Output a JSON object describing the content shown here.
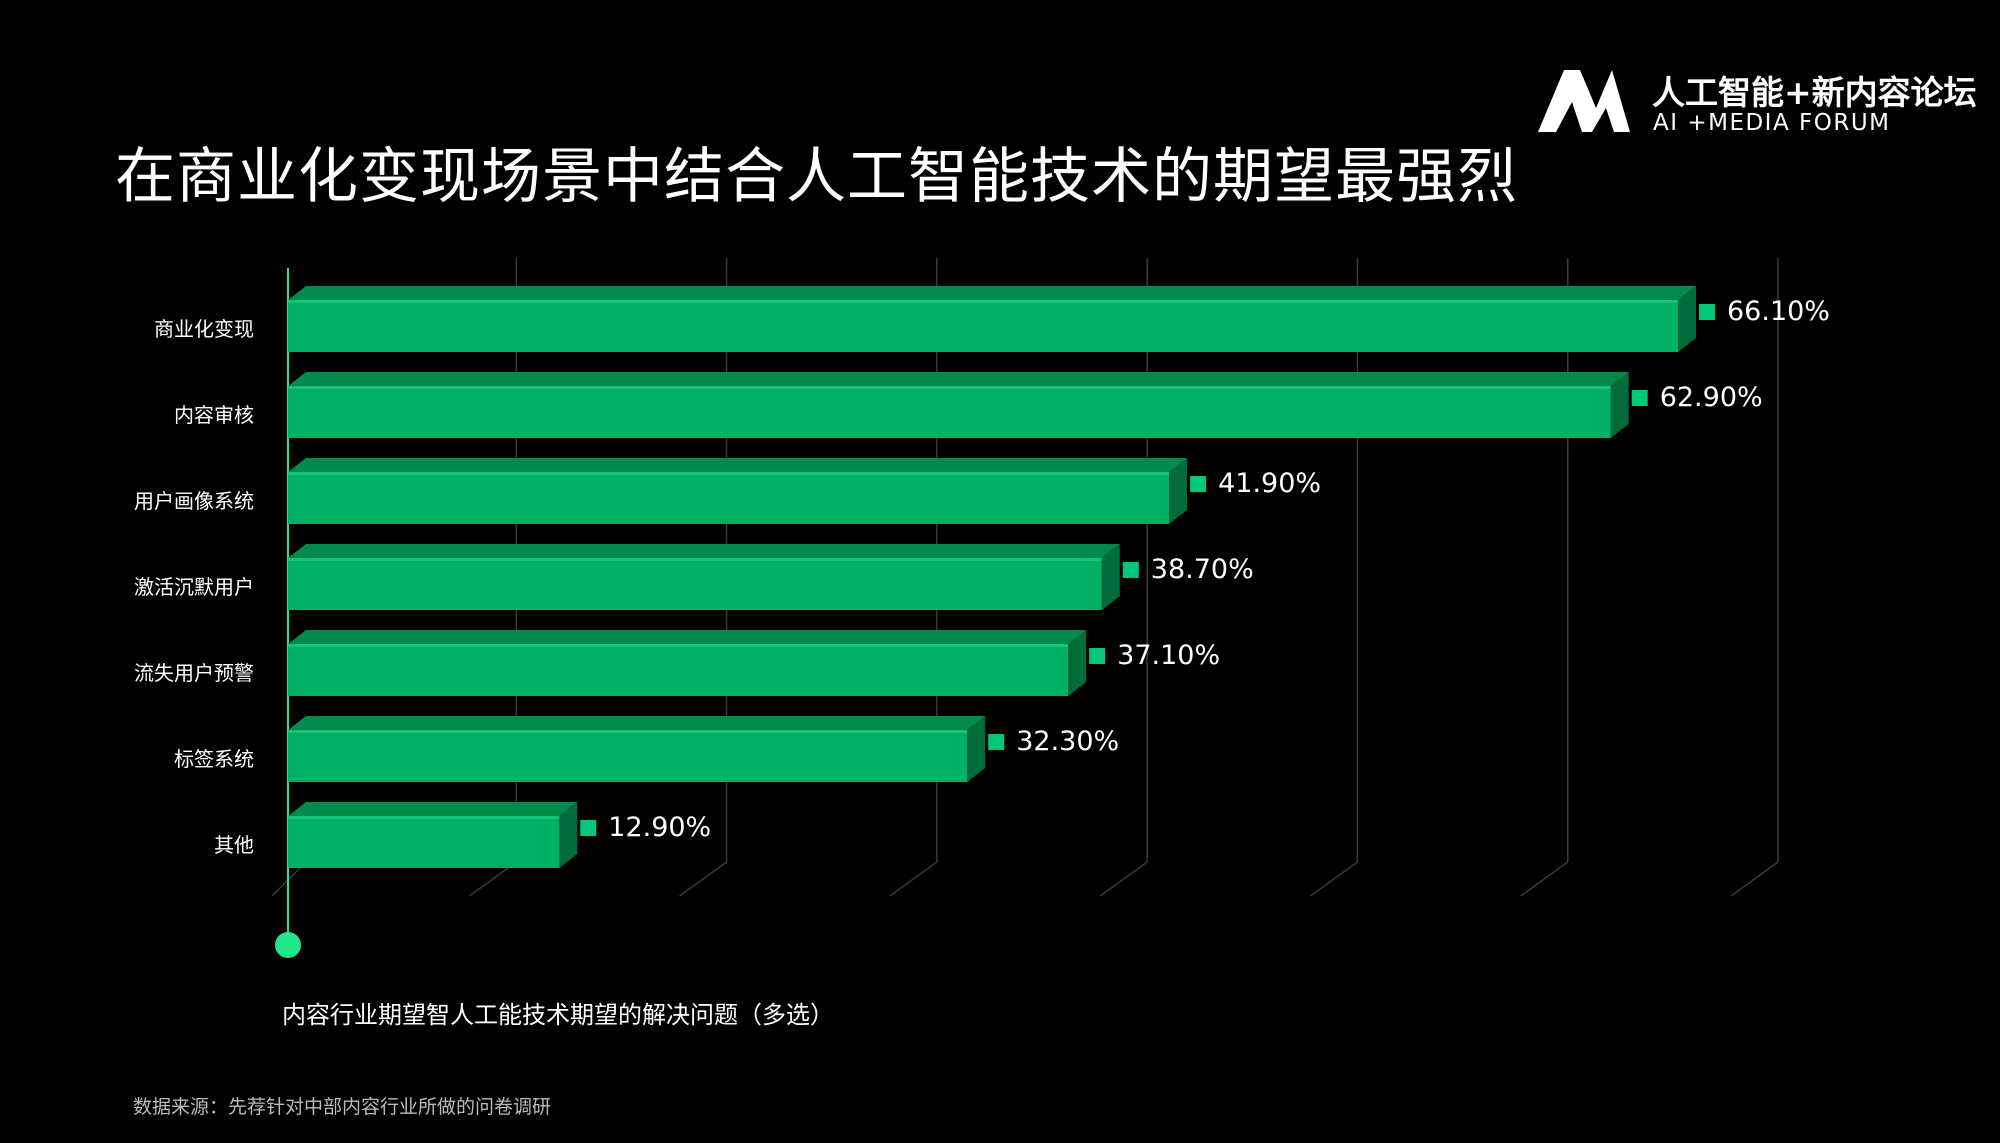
{
  "title": "在商业化变现场景中结合人工智能技术的期望最强烈",
  "brand": {
    "logo": "MA-logo",
    "name_cn": "人工智能+新内容论坛",
    "name_en": "AI +MEDIA FORUM"
  },
  "caption": "内容行业期望智人工能技术期望的解决问题（多选）",
  "source": "数据来源：先荐针对中部内容行业所做的问卷调研",
  "colors": {
    "bar_front": "#00b064",
    "bar_top": "#008a4c",
    "bar_side": "#006c3a",
    "marker": "#00c878",
    "axis": "#1de88a",
    "grid": "#3a3a3a"
  },
  "chart_data": {
    "type": "bar",
    "orientation": "horizontal",
    "categories": [
      "商业化变现",
      "内容审核",
      "用户画像系统",
      "激活沉默用户",
      "流失用户预警",
      "标签系统",
      "其他"
    ],
    "values": [
      66.1,
      62.9,
      41.9,
      38.7,
      37.1,
      32.3,
      12.9
    ],
    "value_labels": [
      "66.10%",
      "62.90%",
      "41.90%",
      "38.70%",
      "37.10%",
      "32.30%",
      "12.90%"
    ],
    "unit": "%",
    "xlim": [
      0,
      70
    ],
    "grid": true,
    "style": "3d"
  }
}
